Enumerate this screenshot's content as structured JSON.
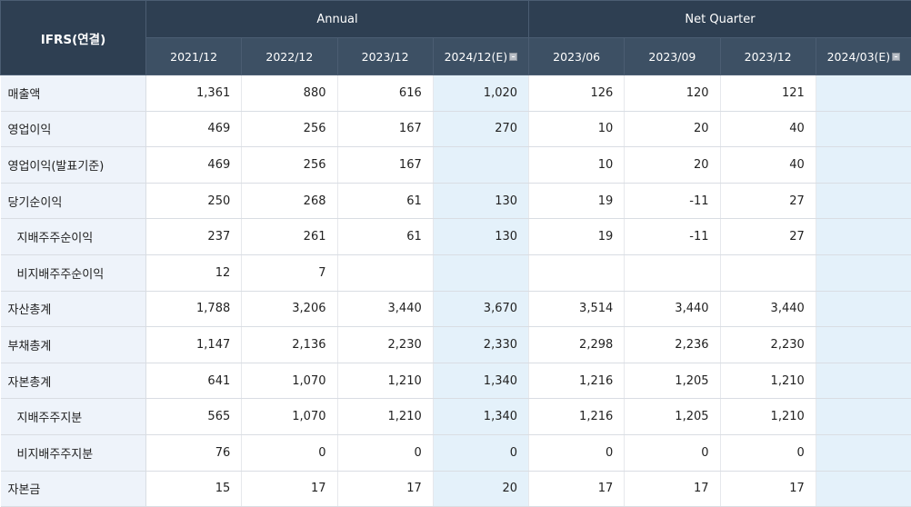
{
  "header": {
    "row_label": "IFRS(연결)",
    "groups": [
      "Annual",
      "Net Quarter"
    ],
    "periods": [
      {
        "label": "2021/12",
        "estimate": false
      },
      {
        "label": "2022/12",
        "estimate": false
      },
      {
        "label": "2023/12",
        "estimate": false
      },
      {
        "label": "2024/12(E)",
        "estimate": true
      },
      {
        "label": "2023/06",
        "estimate": false
      },
      {
        "label": "2023/09",
        "estimate": false
      },
      {
        "label": "2023/12",
        "estimate": false
      },
      {
        "label": "2024/03(E)",
        "estimate": true
      }
    ]
  },
  "rows": [
    {
      "label": "매출액",
      "sub": false,
      "values": [
        "1,361",
        "880",
        "616",
        "1,020",
        "126",
        "120",
        "121",
        ""
      ]
    },
    {
      "label": "영업이익",
      "sub": false,
      "values": [
        "469",
        "256",
        "167",
        "270",
        "10",
        "20",
        "40",
        ""
      ]
    },
    {
      "label": "영업이익(발표기준)",
      "sub": false,
      "values": [
        "469",
        "256",
        "167",
        "",
        "10",
        "20",
        "40",
        ""
      ]
    },
    {
      "label": "당기순이익",
      "sub": false,
      "values": [
        "250",
        "268",
        "61",
        "130",
        "19",
        "-11",
        "27",
        ""
      ]
    },
    {
      "label": "지배주주순이익",
      "sub": true,
      "values": [
        "237",
        "261",
        "61",
        "130",
        "19",
        "-11",
        "27",
        ""
      ]
    },
    {
      "label": "비지배주주순이익",
      "sub": true,
      "values": [
        "12",
        "7",
        "",
        "",
        "",
        "",
        "",
        ""
      ]
    },
    {
      "label": "자산총계",
      "sub": false,
      "values": [
        "1,788",
        "3,206",
        "3,440",
        "3,670",
        "3,514",
        "3,440",
        "3,440",
        ""
      ]
    },
    {
      "label": "부채총계",
      "sub": false,
      "values": [
        "1,147",
        "2,136",
        "2,230",
        "2,330",
        "2,298",
        "2,236",
        "2,230",
        ""
      ]
    },
    {
      "label": "자본총계",
      "sub": false,
      "values": [
        "641",
        "1,070",
        "1,210",
        "1,340",
        "1,216",
        "1,205",
        "1,210",
        ""
      ]
    },
    {
      "label": "지배주주지분",
      "sub": true,
      "values": [
        "565",
        "1,070",
        "1,210",
        "1,340",
        "1,216",
        "1,205",
        "1,210",
        ""
      ]
    },
    {
      "label": "비지배주주지분",
      "sub": true,
      "values": [
        "76",
        "0",
        "0",
        "0",
        "0",
        "0",
        "0",
        ""
      ]
    },
    {
      "label": "자본금",
      "sub": false,
      "values": [
        "15",
        "17",
        "17",
        "20",
        "17",
        "17",
        "17",
        ""
      ]
    }
  ],
  "colors": {
    "header_bg": "#2e3f52",
    "label_bg": "#eef3fa",
    "estimate_bg": "#e4f1fa",
    "negative": "#e0201b"
  }
}
